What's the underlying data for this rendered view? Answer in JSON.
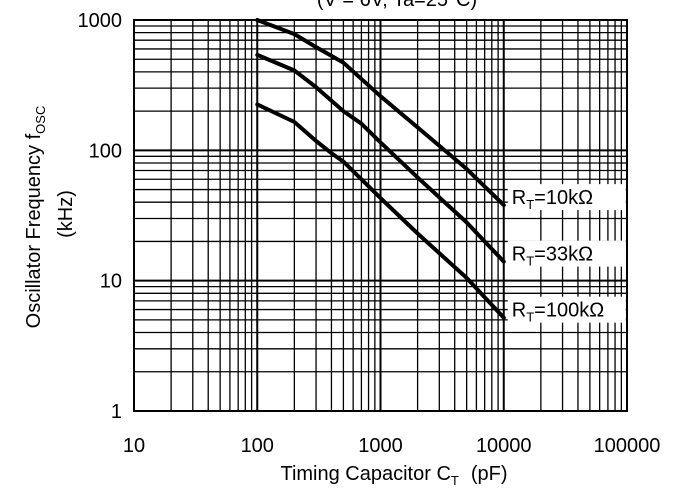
{
  "chart_data": {
    "type": "line",
    "title_partial": "(V  = 6V, Ta=25°C)",
    "xlabel_main": "Timing Capacitor  C",
    "xlabel_sub": "T",
    "xlabel_unit": "(pF)",
    "ylabel_main": "Oscillator Frequency  f",
    "ylabel_sub": "OSC",
    "ylabel_unit": "(kHz)",
    "x_scale": "log",
    "y_scale": "log",
    "xlim": [
      10,
      100000
    ],
    "ylim": [
      1,
      1000
    ],
    "grid": true,
    "x_ticks": [
      "10",
      "100",
      "1000",
      "10000",
      "100000"
    ],
    "y_ticks": [
      "1",
      "10",
      "100",
      "1000"
    ],
    "series": [
      {
        "name": "R_T=10kΩ",
        "label_main": "R",
        "label_sub": "T",
        "label_rest": "=10kΩ",
        "x": [
          100,
          200,
          300,
          500,
          1000,
          2000,
          5000,
          10000
        ],
        "y": [
          1000,
          780,
          620,
          470,
          260,
          150,
          72,
          38
        ]
      },
      {
        "name": "R_T=33kΩ",
        "label_main": "R",
        "label_sub": "T",
        "label_rest": "=33kΩ",
        "x": [
          100,
          200,
          300,
          500,
          700,
          1000,
          2000,
          5000,
          10000
        ],
        "y": [
          540,
          410,
          305,
          200,
          160,
          115,
          62,
          28,
          14
        ]
      },
      {
        "name": "R_T=100kΩ",
        "label_main": "R",
        "label_sub": "T",
        "label_rest": "=100kΩ",
        "x": [
          100,
          200,
          300,
          400,
          500,
          1000,
          2000,
          5000,
          10000
        ],
        "y": [
          225,
          165,
          118,
          95,
          82,
          43,
          23,
          10.5,
          5.2
        ]
      }
    ]
  }
}
